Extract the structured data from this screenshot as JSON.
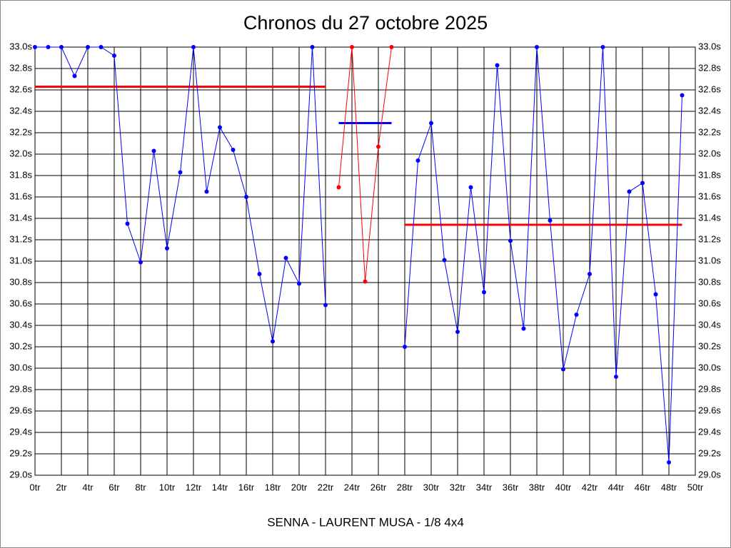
{
  "chart_data": {
    "type": "line",
    "title": "Chronos du 27 octobre 2025",
    "caption": "SENNA - LAURENT MUSA - 1/8 4x4",
    "xlim": [
      0,
      50
    ],
    "ylim": [
      29.0,
      33.0
    ],
    "grid": true,
    "xticks": [
      {
        "value": 0,
        "label": "0tr"
      },
      {
        "value": 2,
        "label": "2tr"
      },
      {
        "value": 4,
        "label": "4tr"
      },
      {
        "value": 6,
        "label": "6tr"
      },
      {
        "value": 8,
        "label": "8tr"
      },
      {
        "value": 10,
        "label": "10tr"
      },
      {
        "value": 12,
        "label": "12tr"
      },
      {
        "value": 14,
        "label": "14tr"
      },
      {
        "value": 16,
        "label": "16tr"
      },
      {
        "value": 18,
        "label": "18tr"
      },
      {
        "value": 20,
        "label": "20tr"
      },
      {
        "value": 22,
        "label": "22tr"
      },
      {
        "value": 24,
        "label": "24tr"
      },
      {
        "value": 26,
        "label": "26tr"
      },
      {
        "value": 28,
        "label": "28tr"
      },
      {
        "value": 30,
        "label": "30tr"
      },
      {
        "value": 32,
        "label": "32tr"
      },
      {
        "value": 34,
        "label": "34tr"
      },
      {
        "value": 36,
        "label": "36tr"
      },
      {
        "value": 38,
        "label": "38tr"
      },
      {
        "value": 40,
        "label": "40tr"
      },
      {
        "value": 42,
        "label": "42tr"
      },
      {
        "value": 44,
        "label": "44tr"
      },
      {
        "value": 46,
        "label": "46tr"
      },
      {
        "value": 48,
        "label": "48tr"
      },
      {
        "value": 50,
        "label": "50tr"
      }
    ],
    "yticks": [
      {
        "value": 29.0,
        "label": "29.0s"
      },
      {
        "value": 29.2,
        "label": "29.2s"
      },
      {
        "value": 29.4,
        "label": "29.4s"
      },
      {
        "value": 29.6,
        "label": "29.6s"
      },
      {
        "value": 29.8,
        "label": "29.8s"
      },
      {
        "value": 30.0,
        "label": "30.0s"
      },
      {
        "value": 30.2,
        "label": "30.2s"
      },
      {
        "value": 30.4,
        "label": "30.4s"
      },
      {
        "value": 30.6,
        "label": "30.6s"
      },
      {
        "value": 30.8,
        "label": "30.8s"
      },
      {
        "value": 31.0,
        "label": "31.0s"
      },
      {
        "value": 31.2,
        "label": "31.2s"
      },
      {
        "value": 31.4,
        "label": "31.4s"
      },
      {
        "value": 31.6,
        "label": "31.6s"
      },
      {
        "value": 31.8,
        "label": "31.8s"
      },
      {
        "value": 32.0,
        "label": "32.0s"
      },
      {
        "value": 32.2,
        "label": "32.2s"
      },
      {
        "value": 32.4,
        "label": "32.4s"
      },
      {
        "value": 32.6,
        "label": "32.6s"
      },
      {
        "value": 32.8,
        "label": "32.8s"
      },
      {
        "value": 33.0,
        "label": "33.0s"
      }
    ],
    "series": [
      {
        "color": "#0000ff",
        "x": [
          0,
          1,
          2,
          3,
          4,
          5,
          6,
          7,
          8,
          9,
          10,
          11,
          12,
          13,
          14,
          15,
          16,
          17,
          18,
          19,
          20,
          21,
          22,
          23,
          24,
          25,
          26,
          27,
          28,
          29,
          30,
          31,
          32,
          33,
          34,
          35,
          36,
          37,
          38,
          39,
          40,
          41,
          42,
          43,
          44,
          45,
          46,
          47,
          48,
          49
        ],
        "values": [
          33.0,
          33.0,
          33.0,
          32.73,
          33.0,
          33.0,
          32.92,
          31.35,
          30.99,
          32.03,
          31.12,
          31.83,
          33.0,
          31.65,
          32.25,
          32.04,
          31.6,
          30.88,
          30.25,
          31.03,
          30.79,
          33.0,
          30.59,
          null,
          null,
          null,
          null,
          null,
          30.2,
          31.94,
          32.29,
          31.01,
          30.34,
          31.69,
          30.71,
          32.83,
          31.19,
          30.37,
          33.0,
          31.38,
          29.99,
          30.5,
          30.88,
          33.0,
          29.92,
          31.65,
          31.73,
          30.69,
          29.12,
          32.55
        ]
      },
      {
        "color": "#ff0000",
        "x": [
          23,
          24,
          25,
          26,
          27
        ],
        "values": [
          31.69,
          33.0,
          30.81,
          32.07,
          33.0
        ]
      }
    ],
    "reference_lines": [
      {
        "value": 32.63,
        "from": 0,
        "to": 22,
        "color": "#ff0000"
      },
      {
        "value": 32.29,
        "from": 23,
        "to": 27,
        "color": "#0000ff"
      },
      {
        "value": 31.34,
        "from": 28,
        "to": 49,
        "color": "#ff0000"
      }
    ]
  }
}
